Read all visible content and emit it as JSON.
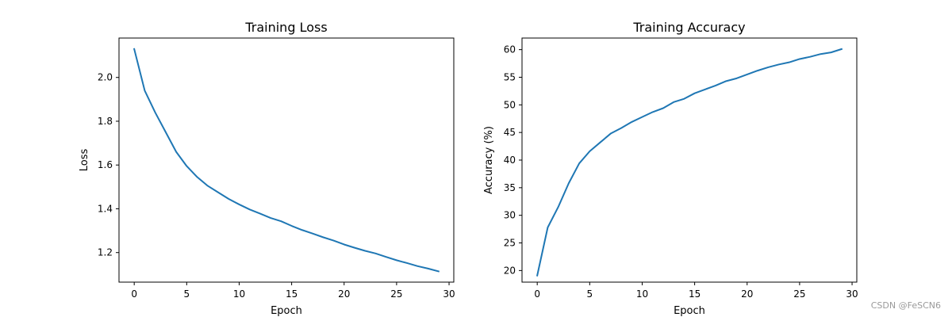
{
  "watermark": "CSDN @FeSCN6",
  "chart_data": [
    {
      "type": "line",
      "title": "Training Loss",
      "xlabel": "Epoch",
      "ylabel": "Loss",
      "xlim": [
        -1.45,
        30.45
      ],
      "ylim": [
        1.065,
        2.18
      ],
      "xticks": [
        0,
        5,
        10,
        15,
        20,
        25,
        30
      ],
      "xtick_labels": [
        "0",
        "5",
        "10",
        "15",
        "20",
        "25",
        "30"
      ],
      "yticks": [
        1.2,
        1.4,
        1.6,
        1.8,
        2.0
      ],
      "ytick_labels": [
        "1.2",
        "1.4",
        "1.6",
        "1.8",
        "2.0"
      ],
      "grid": false,
      "color": "#1f77b4",
      "x": [
        0,
        1,
        2,
        3,
        4,
        5,
        6,
        7,
        8,
        9,
        10,
        11,
        12,
        13,
        14,
        15,
        16,
        17,
        18,
        19,
        20,
        21,
        22,
        23,
        24,
        25,
        26,
        27,
        28,
        29
      ],
      "series": [
        {
          "values": [
            2.13,
            1.94,
            1.84,
            1.75,
            1.66,
            1.595,
            1.545,
            1.505,
            1.475,
            1.445,
            1.42,
            1.397,
            1.378,
            1.358,
            1.343,
            1.322,
            1.303,
            1.287,
            1.27,
            1.255,
            1.237,
            1.222,
            1.208,
            1.196,
            1.18,
            1.165,
            1.152,
            1.138,
            1.127,
            1.114
          ]
        }
      ]
    },
    {
      "type": "line",
      "title": "Training Accuracy",
      "xlabel": "Epoch",
      "ylabel": "Accuracy (%)",
      "xlim": [
        -1.45,
        30.45
      ],
      "ylim": [
        17.9,
        62.1
      ],
      "xticks": [
        0,
        5,
        10,
        15,
        20,
        25,
        30
      ],
      "xtick_labels": [
        "0",
        "5",
        "10",
        "15",
        "20",
        "25",
        "30"
      ],
      "yticks": [
        20,
        25,
        30,
        35,
        40,
        45,
        50,
        55,
        60
      ],
      "ytick_labels": [
        "20",
        "25",
        "30",
        "35",
        "40",
        "45",
        "50",
        "55",
        "60"
      ],
      "grid": false,
      "color": "#1f77b4",
      "x": [
        0,
        1,
        2,
        3,
        4,
        5,
        6,
        7,
        8,
        9,
        10,
        11,
        12,
        13,
        14,
        15,
        16,
        17,
        18,
        19,
        20,
        21,
        22,
        23,
        24,
        25,
        26,
        27,
        28,
        29
      ],
      "series": [
        {
          "values": [
            19.1,
            27.8,
            31.5,
            35.8,
            39.4,
            41.6,
            43.2,
            44.8,
            45.8,
            46.9,
            47.8,
            48.7,
            49.4,
            50.5,
            51.1,
            52.1,
            52.8,
            53.5,
            54.3,
            54.8,
            55.5,
            56.2,
            56.8,
            57.3,
            57.7,
            58.3,
            58.7,
            59.2,
            59.5,
            60.1
          ]
        }
      ]
    }
  ]
}
